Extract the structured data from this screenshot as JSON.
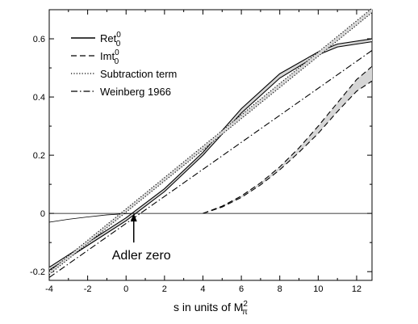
{
  "chart_data": {
    "type": "line",
    "xlabel": {
      "text": "s in units of M",
      "sub": "π",
      "sup": "2"
    },
    "ylabel": "",
    "xlim": [
      -4,
      12.8
    ],
    "ylim": [
      -0.23,
      0.7
    ],
    "xticks": [
      -4,
      -2,
      0,
      2,
      4,
      6,
      8,
      10,
      12
    ],
    "yticks": [
      -0.2,
      0,
      0.2,
      0.4,
      0.6
    ],
    "xtick_labels": [
      "-4",
      "-2",
      "0",
      "2",
      "4",
      "6",
      "8",
      "10",
      "12"
    ],
    "ytick_labels": [
      "-0.2",
      "0",
      "0.2",
      "0.4",
      "0.6"
    ],
    "grid": false,
    "legend_position": "top-left",
    "legend": [
      {
        "id": "ret",
        "base": "Ret",
        "sup": "0",
        "sub": "0",
        "style": "solid"
      },
      {
        "id": "imt",
        "base": "Imt",
        "sup": "0",
        "sub": "0",
        "style": "dashed"
      },
      {
        "id": "sub",
        "text": "Subtraction term",
        "style": "dotted"
      },
      {
        "id": "wein",
        "text": "Weinberg 1966",
        "style": "dashdot"
      }
    ],
    "annotation": {
      "text": "Adler zero",
      "x": 0.4,
      "y": 0.0
    },
    "series": [
      {
        "id": "ret",
        "style": "solid",
        "band_upper": {
          "x": [
            -4,
            -2,
            0,
            1,
            2,
            4,
            6,
            8,
            10,
            11,
            12.8
          ],
          "y": [
            -0.185,
            -0.1,
            -0.015,
            0.035,
            0.085,
            0.21,
            0.36,
            0.48,
            0.555,
            0.582,
            0.6
          ]
        },
        "band_lower": {
          "x": [
            -4,
            -2,
            0,
            1,
            2,
            4,
            6,
            8,
            10,
            11,
            12.8
          ],
          "y": [
            -0.195,
            -0.11,
            -0.025,
            0.025,
            0.075,
            0.2,
            0.345,
            0.465,
            0.545,
            0.572,
            0.59
          ]
        }
      },
      {
        "id": "imt_left",
        "style": "solid-thin",
        "x": [
          -4,
          -3,
          -2,
          -1,
          0,
          0.4
        ],
        "y": [
          -0.03,
          -0.02,
          -0.012,
          -0.005,
          -0.001,
          0.0
        ]
      },
      {
        "id": "imt",
        "style": "dashed",
        "band_upper": {
          "x": [
            4,
            5,
            6,
            7,
            8,
            9,
            10,
            11,
            12,
            12.8
          ],
          "y": [
            0.0,
            0.025,
            0.06,
            0.105,
            0.16,
            0.225,
            0.3,
            0.38,
            0.46,
            0.505
          ]
        },
        "band_lower": {
          "x": [
            4,
            5,
            6,
            7,
            8,
            9,
            10,
            11,
            12,
            12.8
          ],
          "y": [
            0.0,
            0.022,
            0.055,
            0.098,
            0.15,
            0.21,
            0.275,
            0.35,
            0.42,
            0.455
          ]
        }
      },
      {
        "id": "sub",
        "style": "dotted",
        "band_upper": {
          "x": [
            -4,
            12.8
          ],
          "y": [
            -0.2,
            0.705
          ]
        },
        "band_lower": {
          "x": [
            -4,
            12.8
          ],
          "y": [
            -0.21,
            0.69
          ]
        }
      },
      {
        "id": "wein",
        "style": "dashdot",
        "x": [
          -4,
          12.8
        ],
        "y": [
          -0.22,
          0.56
        ]
      }
    ]
  }
}
